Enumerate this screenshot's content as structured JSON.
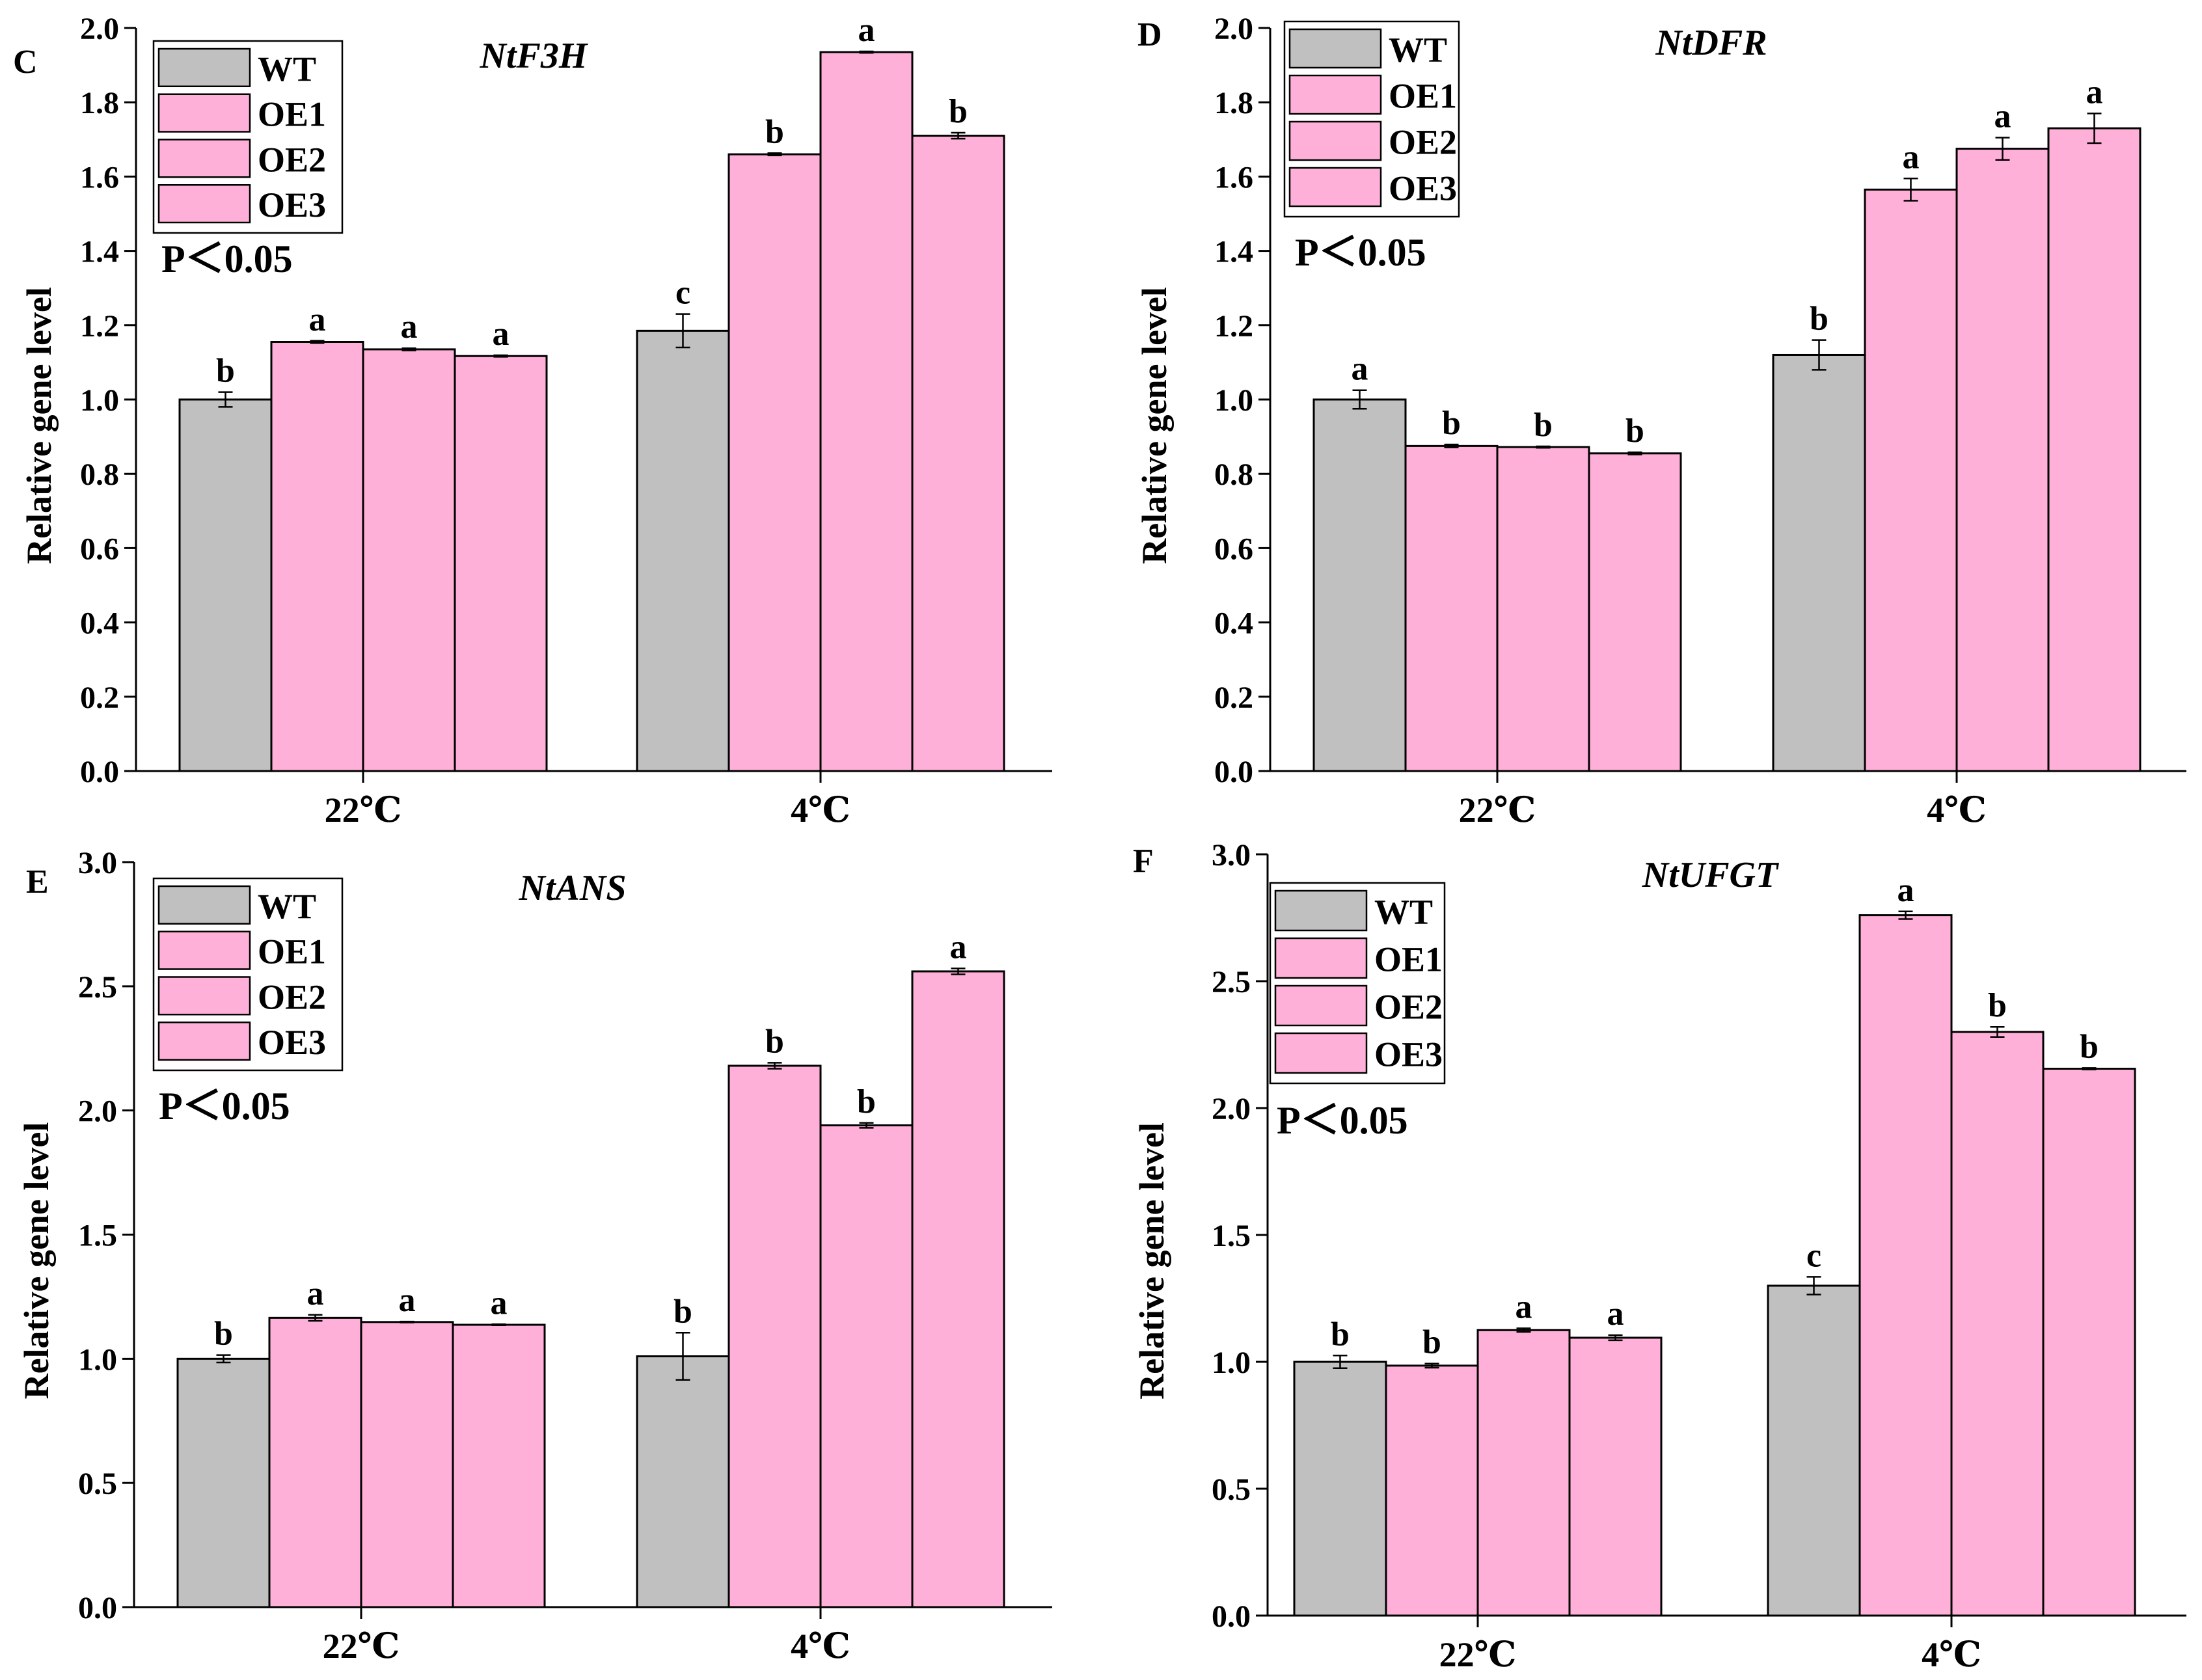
{
  "colors": {
    "WT": "#c0c0c0",
    "OE": "#ffb0d8",
    "stroke": "#000000"
  },
  "chart_data": [
    {
      "panel": "C",
      "type": "bar",
      "gene": "NtF3H",
      "ylabel": "Relative gene level",
      "ylim": [
        0,
        2.0
      ],
      "yticks": [
        "0.0",
        "0.2",
        "0.4",
        "0.6",
        "0.8",
        "1.0",
        "1.2",
        "1.4",
        "1.6",
        "1.8",
        "2.0"
      ],
      "categories": [
        "22℃",
        "4℃"
      ],
      "legend": [
        "WT",
        "OE1",
        "OE2",
        "OE3"
      ],
      "pvalue": "P＜0.05",
      "series": [
        {
          "name": "WT",
          "values": [
            1.0,
            1.185
          ],
          "errors": [
            0.02,
            0.045
          ],
          "letters": [
            "b",
            "c"
          ]
        },
        {
          "name": "OE1",
          "values": [
            1.155,
            1.66
          ],
          "errors": [
            0.003,
            0.003
          ],
          "letters": [
            "a",
            "b"
          ]
        },
        {
          "name": "OE2",
          "values": [
            1.135,
            1.935
          ],
          "errors": [
            0.003,
            0.002
          ],
          "letters": [
            "a",
            "a"
          ]
        },
        {
          "name": "OE3",
          "values": [
            1.117,
            1.71
          ],
          "errors": [
            0.002,
            0.008
          ],
          "letters": [
            "a",
            "b"
          ]
        }
      ]
    },
    {
      "panel": "D",
      "type": "bar",
      "gene": "NtDFR",
      "ylabel": "Relative gene level",
      "ylim": [
        0,
        2.0
      ],
      "yticks": [
        "0.0",
        "0.2",
        "0.4",
        "0.6",
        "0.8",
        "1.0",
        "1.2",
        "1.4",
        "1.6",
        "1.8",
        "2.0"
      ],
      "categories": [
        "22℃",
        "4℃"
      ],
      "legend": [
        "WT",
        "OE1",
        "OE2",
        "OE3"
      ],
      "pvalue": "P＜0.05",
      "series": [
        {
          "name": "WT",
          "values": [
            1.0,
            1.12
          ],
          "errors": [
            0.025,
            0.04
          ],
          "letters": [
            "a",
            "b"
          ]
        },
        {
          "name": "OE1",
          "values": [
            0.875,
            1.565
          ],
          "errors": [
            0.004,
            0.03
          ],
          "letters": [
            "b",
            "a"
          ]
        },
        {
          "name": "OE2",
          "values": [
            0.872,
            1.675
          ],
          "errors": [
            0.002,
            0.03
          ],
          "letters": [
            "b",
            "a"
          ]
        },
        {
          "name": "OE3",
          "values": [
            0.855,
            1.73
          ],
          "errors": [
            0.003,
            0.04
          ],
          "letters": [
            "b",
            "a"
          ]
        }
      ]
    },
    {
      "panel": "E",
      "type": "bar",
      "gene": "NtANS",
      "ylabel": "Relative gene level",
      "ylim": [
        0,
        3.0
      ],
      "yticks": [
        "0.0",
        "0.5",
        "1.0",
        "1.5",
        "2.0",
        "2.5",
        "3.0"
      ],
      "categories": [
        "22℃",
        "4℃"
      ],
      "legend": [
        "WT",
        "OE1",
        "OE2",
        "OE3"
      ],
      "pvalue": "P＜0.05",
      "series": [
        {
          "name": "WT",
          "values": [
            1.0,
            1.01
          ],
          "errors": [
            0.015,
            0.095
          ],
          "letters": [
            "b",
            "b"
          ]
        },
        {
          "name": "OE1",
          "values": [
            1.165,
            2.18
          ],
          "errors": [
            0.012,
            0.012
          ],
          "letters": [
            "a",
            "b"
          ]
        },
        {
          "name": "OE2",
          "values": [
            1.148,
            1.94
          ],
          "errors": [
            0.002,
            0.01
          ],
          "letters": [
            "a",
            "b"
          ]
        },
        {
          "name": "OE3",
          "values": [
            1.137,
            2.56
          ],
          "errors": [
            0.002,
            0.012
          ],
          "letters": [
            "a",
            "a"
          ]
        }
      ]
    },
    {
      "panel": "F",
      "type": "bar",
      "gene": "NtUFGT",
      "ylabel": "Relative gene level",
      "ylim": [
        0,
        3.0
      ],
      "yticks": [
        "0.0",
        "0.5",
        "1.0",
        "1.5",
        "2.0",
        "2.5",
        "3.0"
      ],
      "categories": [
        "22℃",
        "4℃"
      ],
      "legend": [
        "WT",
        "OE1",
        "OE2",
        "OE3"
      ],
      "pvalue": "P＜0.05",
      "series": [
        {
          "name": "WT",
          "values": [
            1.0,
            1.3
          ],
          "errors": [
            0.025,
            0.035
          ],
          "letters": [
            "b",
            "c"
          ]
        },
        {
          "name": "OE1",
          "values": [
            0.985,
            2.76
          ],
          "errors": [
            0.008,
            0.015
          ],
          "letters": [
            "b",
            "a"
          ]
        },
        {
          "name": "OE2",
          "values": [
            1.125,
            2.3
          ],
          "errors": [
            0.007,
            0.02
          ],
          "letters": [
            "a",
            "b"
          ]
        },
        {
          "name": "OE3",
          "values": [
            1.095,
            2.155
          ],
          "errors": [
            0.01,
            0.003
          ],
          "letters": [
            "a",
            "b"
          ]
        }
      ]
    }
  ]
}
